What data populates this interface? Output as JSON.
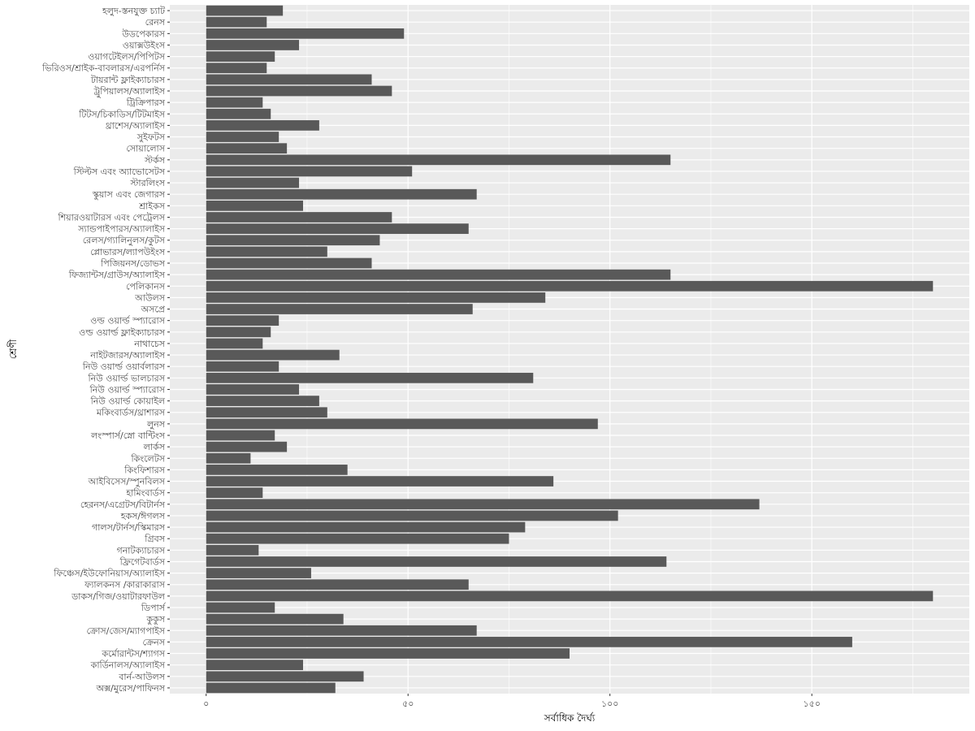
{
  "chart_data": {
    "type": "bar",
    "orientation": "horizontal",
    "xlabel": "সর্বাধিক দৈর্ঘ্য",
    "ylabel": "শ্রেণী",
    "xlim": [
      -9,
      189
    ],
    "x_ticks": [
      0,
      50,
      100,
      150
    ],
    "x_tick_labels": [
      "০",
      "৫০",
      "১০০",
      "১৫০"
    ],
    "grid": true,
    "legend": "none",
    "colors": {
      "bar": "#595959",
      "panel": "#ebebeb",
      "grid": "#ffffff"
    },
    "categories": [
      "হলুদ-স্তনযুক্ত চ্যাট",
      "রেনস",
      "উডপেকারস",
      "ওয়াক্সউইংস",
      "ওয়াগটেইলস/পিপিটস",
      "ভিরিওস/শ্রাইক-বাবলারস/এরপর্নিস",
      "টায়রান্ট ফ্লাইক্যাচারস",
      "ট্রুপিয়ালস/অ্যালাইস",
      "ট্রিক্রিপারস",
      "টিটস/চিকাডিস/টিটমাইস",
      "থ্রাশেস/অ্যালাইস",
      "সুইফটস",
      "সোয়ালোস",
      "স্টর্কস",
      "স্টিল্টস এবং অ্যাভোসেটস",
      "স্টারলিংস",
      "স্কুয়াস এবং জেগারস",
      "শ্রাইকস",
      "শিয়ারওয়াটারস এবং পেট্রেলস",
      "স্যান্ডপাইপারস/অ্যালাইস",
      "রেলস/গ্যালিনুলস/কুটস",
      "প্লোভারস/ল্যাপউইংস",
      "পিজিয়নস/ডোভস",
      "ফিজ্যান্টস/গ্রাউস/অ্যালাইস",
      "পেলিকানস",
      "আউলস",
      "অসপ্রে",
      "ওল্ড ওয়ার্ল্ড স্প্যারোস",
      "ওল্ড ওয়ার্ল্ড ফ্লাইক্যাচারস",
      "নাথাচেস",
      "নাইটজারস/অ্যালাইস",
      "নিউ ওয়ার্ল্ড ওয়ার্বলারস",
      "নিউ ওয়ার্ল্ড ভালচারস",
      "নিউ ওয়ার্ল্ড স্প্যারোস",
      "নিউ ওয়ার্ল্ড কোয়াইল",
      "মকিংবার্ডস/থ্রাশারস",
      "লুনস",
      "লংস্পার্স/স্নো বান্টিংস",
      "লার্কস",
      "কিংলেটস",
      "কিংফিশারস",
      "আইবিসেস/স্পুনবিলস",
      "হামিংবার্ডস",
      "হেরনস/এগ্রেটস/বিটার্নস",
      "হকস/ঈগলস",
      "গালস/টার্নস/স্কিমারস",
      "গ্রিবস",
      "গনাটক্যাচারস",
      "ফ্রিগেটবার্ডস",
      "ফিঞ্চেস/ইউফোনিয়াস/অ্যালাইস",
      "ফ্যালকনস /কারাকারাস",
      "ডাকস/গিজ/ওয়াটারফাউল",
      "ডিপার্স",
      "কুকুস",
      "ক্রোস/জেস/ম্যাগপাইস",
      "ক্রেনস",
      "কর্মোরান্টস/শ্যাগস",
      "কার্ডিনালস/অ্যালাইস",
      "বার্ন-আউলস",
      "অক্স/মুরেস/পাফিনস"
    ],
    "values": [
      19,
      15,
      49,
      23,
      17,
      15,
      41,
      46,
      14,
      16,
      28,
      18,
      20,
      115,
      51,
      23,
      67,
      24,
      46,
      65,
      43,
      30,
      41,
      115,
      180,
      84,
      66,
      18,
      16,
      14,
      33,
      18,
      81,
      23,
      28,
      30,
      97,
      17,
      20,
      11,
      35,
      86,
      14,
      137,
      102,
      79,
      75,
      13,
      114,
      26,
      65,
      180,
      17,
      34,
      67,
      160,
      90,
      24,
      39,
      32
    ]
  }
}
